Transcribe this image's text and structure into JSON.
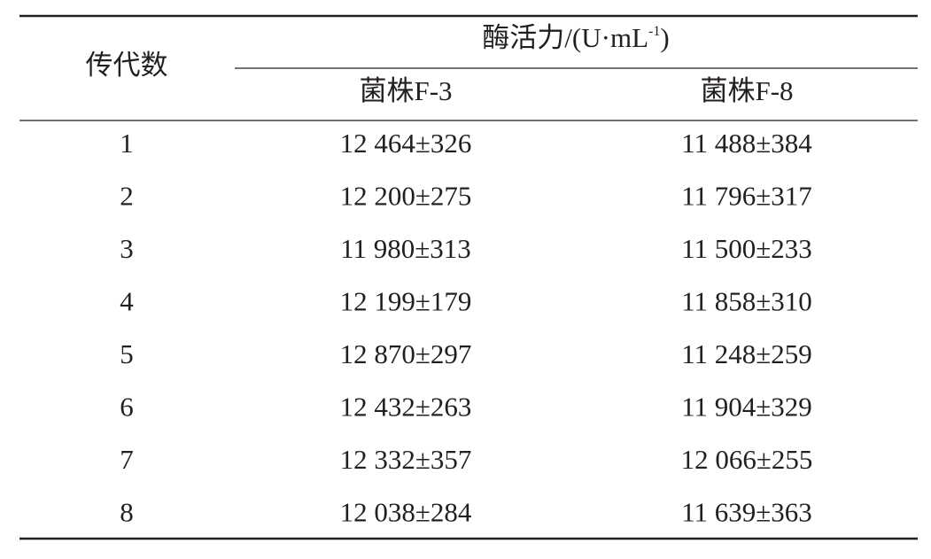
{
  "table": {
    "header": {
      "row_header": "传代数",
      "group_header": {
        "text": "酶活力/(U·mL",
        "superscript": "-1",
        "close": ")"
      },
      "columns": [
        "菌株F-3",
        "菌株F-8"
      ]
    },
    "rows": [
      [
        "1",
        "12 464±326",
        "11 488±384"
      ],
      [
        "2",
        "12 200±275",
        "11 796±317"
      ],
      [
        "3",
        "11 980±313",
        "11 500±233"
      ],
      [
        "4",
        "12 199±179",
        "11 858±310"
      ],
      [
        "5",
        "12 870±297",
        "11 248±259"
      ],
      [
        "6",
        "12 432±263",
        "11 904±329"
      ],
      [
        "7",
        "12 332±357",
        "12 066±255"
      ],
      [
        "8",
        "12 038±284",
        "11 639±363"
      ]
    ]
  }
}
